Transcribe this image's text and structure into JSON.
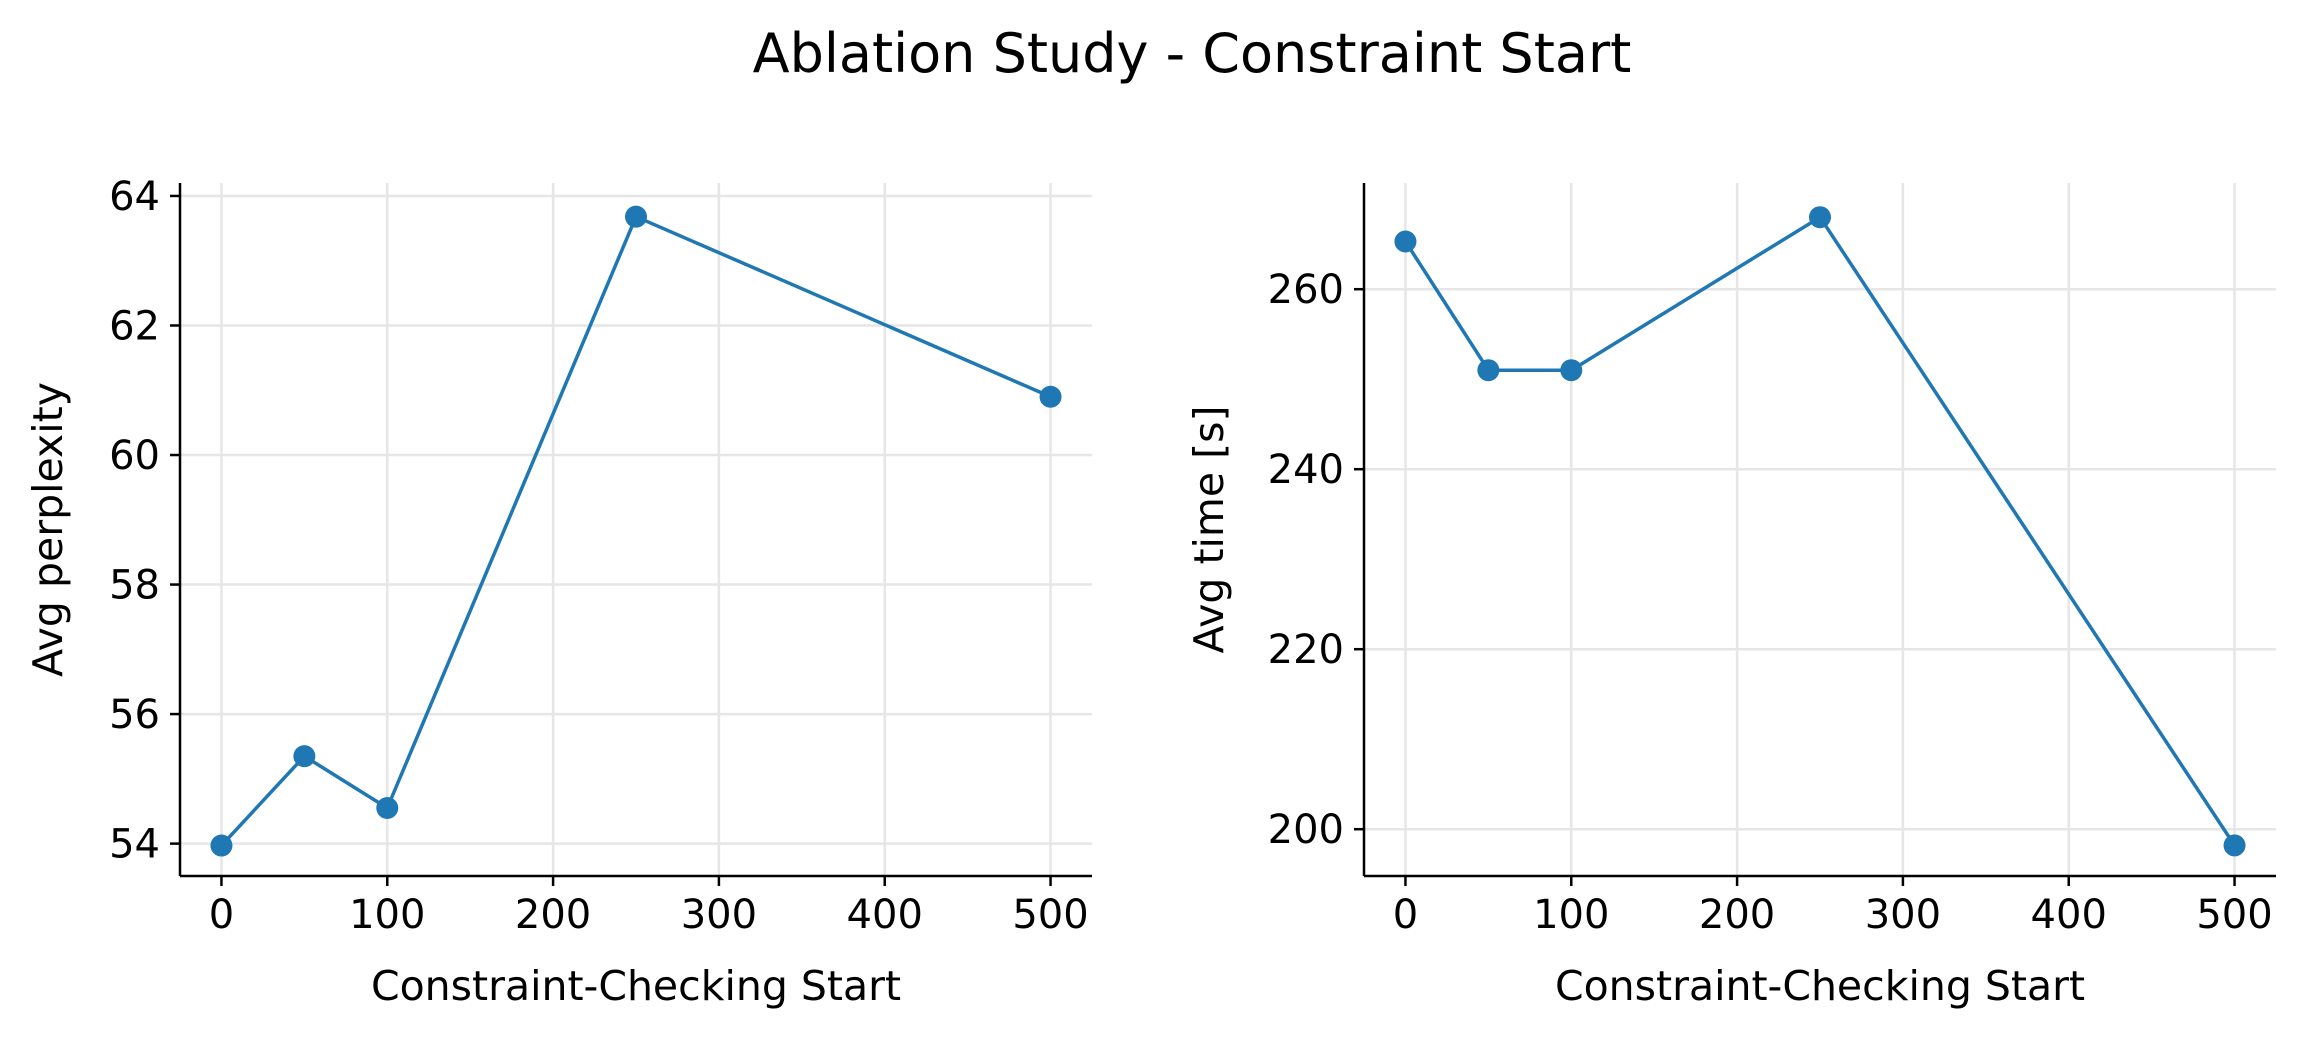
{
  "figure": {
    "title": "Ablation Study - Constraint Start"
  },
  "chart_data": [
    {
      "type": "line",
      "title": "",
      "xlabel": "Constraint-Checking Start",
      "ylabel": "Avg perplexity",
      "x": [
        0,
        50,
        100,
        250,
        500
      ],
      "series": [
        {
          "values": [
            53.97,
            55.35,
            54.55,
            63.68,
            60.9
          ]
        }
      ],
      "xlim": [
        -25,
        525
      ],
      "ylim": [
        53.5,
        64.2
      ],
      "xticks": [
        0,
        100,
        200,
        300,
        400,
        500
      ],
      "xtick_labels": [
        "0",
        "100",
        "200",
        "300",
        "400",
        "500"
      ],
      "yticks": [
        54,
        56,
        58,
        60,
        62,
        64
      ],
      "ytick_labels": [
        "54",
        "56",
        "58",
        "60",
        "62",
        "64"
      ],
      "grid": true,
      "color": "#1f77b4"
    },
    {
      "type": "line",
      "title": "",
      "xlabel": "Constraint-Checking Start",
      "ylabel": "Avg time [s]",
      "x": [
        0,
        50,
        100,
        250,
        500
      ],
      "series": [
        {
          "values": [
            265.3,
            251,
            251,
            268,
            198.2
          ]
        }
      ],
      "xlim": [
        -25,
        525
      ],
      "ylim": [
        194.8,
        271.8
      ],
      "xticks": [
        0,
        100,
        200,
        300,
        400,
        500
      ],
      "xtick_labels": [
        "0",
        "100",
        "200",
        "300",
        "400",
        "500"
      ],
      "yticks": [
        200,
        220,
        240,
        260
      ],
      "ytick_labels": [
        "200",
        "220",
        "240",
        "260"
      ],
      "grid": true,
      "color": "#1f77b4"
    }
  ]
}
